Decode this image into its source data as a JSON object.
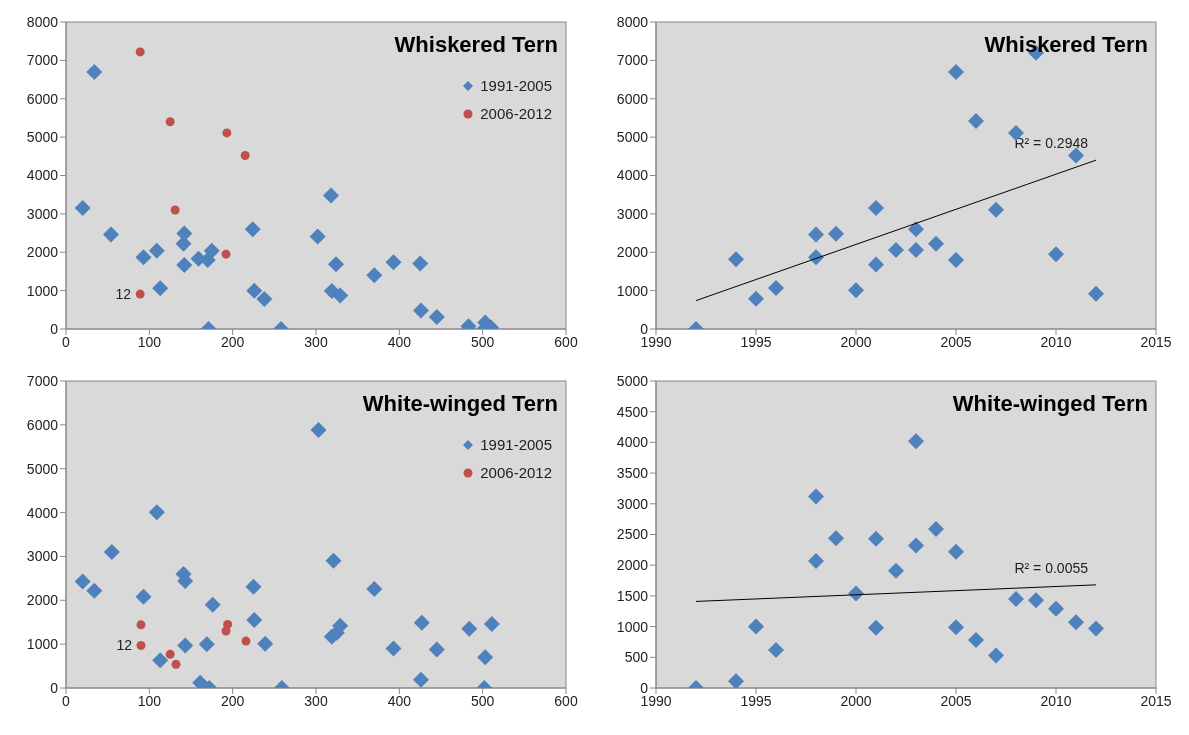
{
  "chart_data": [
    {
      "type": "scatter",
      "title": "Whiskered Tern",
      "xlim": [
        0,
        600
      ],
      "xticks": [
        0,
        100,
        200,
        300,
        400,
        500,
        600
      ],
      "ylim": [
        0,
        8000
      ],
      "yticks": [
        0,
        1000,
        2000,
        3000,
        4000,
        5000,
        6000,
        7000,
        8000
      ],
      "grid": false,
      "legend": "top right",
      "annotations": [
        {
          "text": "12",
          "x": 89,
          "y": 910
        }
      ],
      "series": [
        {
          "name": "1991-2005",
          "color": "#4f81bd",
          "marker": "diamond",
          "x": [
            34,
            20,
            54,
            93,
            109,
            113,
            142,
            141,
            142,
            159,
            170,
            175,
            171,
            224,
            226,
            238,
            258,
            302,
            318,
            324,
            319,
            329,
            370,
            393,
            425,
            426,
            445,
            483,
            503,
            502,
            510
          ],
          "values": [
            6700,
            3150,
            2460,
            1870,
            2040,
            1060,
            2490,
            2220,
            1670,
            1830,
            1800,
            2040,
            0,
            2600,
            1000,
            780,
            0,
            2410,
            3480,
            1690,
            990,
            870,
            1400,
            1740,
            1710,
            480,
            310,
            70,
            170,
            0,
            40
          ]
        },
        {
          "name": "2006-2012",
          "color": "#c0504d",
          "marker": "circle",
          "x": [
            89,
            125,
            193,
            215,
            131,
            192,
            89
          ],
          "values": [
            7220,
            5400,
            5110,
            4520,
            3100,
            1950,
            910
          ]
        }
      ]
    },
    {
      "type": "scatter",
      "title": "Whiskered Tern",
      "xlim": [
        1990,
        2015
      ],
      "xticks": [
        1990,
        1995,
        2000,
        2005,
        2010,
        2015
      ],
      "ylim": [
        0,
        8000
      ],
      "yticks": [
        0,
        1000,
        2000,
        3000,
        4000,
        5000,
        6000,
        7000,
        8000
      ],
      "grid": false,
      "annotations": [
        {
          "text": "R² = 0.2948",
          "x": 2012,
          "y": 4400
        }
      ],
      "series": [
        {
          "color": "#4f81bd",
          "marker": "diamond",
          "x": [
            1992,
            1994,
            1995,
            1996,
            1998,
            1998,
            1999,
            2000,
            2001,
            2001,
            2002,
            2003,
            2003,
            2004,
            2005,
            2005,
            2006,
            2007,
            2008,
            2009,
            2010,
            2011,
            2012
          ],
          "values": [
            0,
            1820,
            790,
            1070,
            2460,
            1870,
            2480,
            1010,
            3150,
            1680,
            2060,
            2600,
            2060,
            2220,
            6700,
            1800,
            5420,
            3110,
            5110,
            7200,
            1950,
            4520,
            920
          ]
        },
        {
          "type": "line",
          "color": "#000000",
          "marker": "none",
          "x": [
            1992,
            2012
          ],
          "values": [
            740,
            4400
          ]
        }
      ]
    },
    {
      "type": "scatter",
      "title": "White-winged Tern",
      "xlim": [
        0,
        600
      ],
      "xticks": [
        0,
        100,
        200,
        300,
        400,
        500,
        600
      ],
      "ylim": [
        0,
        7000
      ],
      "yticks": [
        0,
        1000,
        2000,
        3000,
        4000,
        5000,
        6000,
        7000
      ],
      "grid": false,
      "legend": "top right",
      "annotations": [
        {
          "text": "12",
          "x": 90,
          "y": 974
        }
      ],
      "series": [
        {
          "name": "1991-2005",
          "color": "#4f81bd",
          "marker": "diamond",
          "x": [
            20,
            34,
            55,
            93,
            109,
            113,
            141,
            143,
            143,
            161,
            172,
            169,
            176,
            225,
            226,
            239,
            259,
            303,
            321,
            319,
            325,
            329,
            370,
            393,
            427,
            426,
            445,
            484,
            511,
            503,
            502
          ],
          "values": [
            2430,
            2220,
            3100,
            2080,
            4010,
            630,
            2600,
            2440,
            970,
            120,
            0,
            1000,
            1900,
            2310,
            1550,
            1010,
            0,
            5880,
            2900,
            1170,
            1260,
            1420,
            2260,
            900,
            1490,
            190,
            880,
            1350,
            1460,
            700,
            0
          ]
        },
        {
          "name": "2006-2012",
          "color": "#c0504d",
          "marker": "circle",
          "x": [
            90,
            90,
            125,
            132,
            194,
            192,
            216
          ],
          "values": [
            1440,
            970,
            770,
            540,
            1450,
            1300,
            1070
          ]
        }
      ]
    },
    {
      "type": "scatter",
      "title": "White-winged Tern",
      "xlim": [
        1990,
        2015
      ],
      "xticks": [
        1990,
        1995,
        2000,
        2005,
        2010,
        2015
      ],
      "ylim": [
        0,
        5000
      ],
      "yticks": [
        0,
        500,
        1000,
        1500,
        2000,
        2500,
        3000,
        3500,
        4000,
        4500,
        5000
      ],
      "grid": false,
      "annotations": [
        {
          "text": "R² = 0.0055",
          "x": 2012,
          "y": 1680
        }
      ],
      "series": [
        {
          "color": "#4f81bd",
          "marker": "diamond",
          "x": [
            1992,
            1994,
            1995,
            1996,
            1998,
            1998,
            1999,
            2000,
            2001,
            2001,
            2002,
            2003,
            2003,
            2004,
            2005,
            2005,
            2006,
            2007,
            2008,
            2009,
            2010,
            2011,
            2012
          ],
          "values": [
            0,
            110,
            1000,
            620,
            3120,
            2070,
            2440,
            1540,
            2430,
            980,
            1910,
            4020,
            2320,
            2590,
            2220,
            990,
            780,
            530,
            1450,
            1430,
            1290,
            1070,
            970
          ]
        },
        {
          "type": "line",
          "color": "#000000",
          "marker": "none",
          "x": [
            1992,
            2012
          ],
          "values": [
            1410,
            1680
          ]
        }
      ]
    }
  ]
}
